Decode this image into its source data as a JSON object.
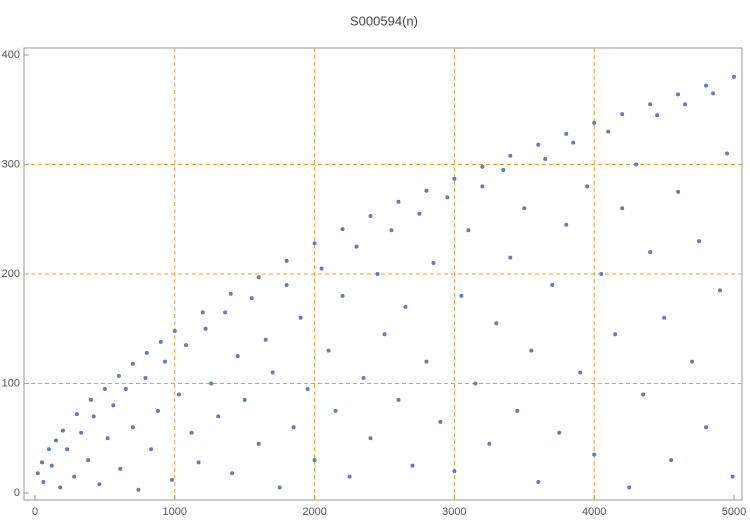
{
  "chart_data": {
    "type": "scatter",
    "title": "S000594(n)",
    "color": "#5b7fbb",
    "grid": true,
    "grid_color": "#f0a030",
    "xlim": [
      0,
      5000
    ],
    "ylim": [
      0,
      400
    ],
    "xticks": [
      0,
      1000,
      2000,
      3000,
      4000,
      5000
    ],
    "yticks": [
      0,
      100,
      200,
      300,
      400
    ],
    "x": [
      20,
      50,
      100,
      150,
      200,
      300,
      400,
      500,
      600,
      700,
      800,
      900,
      1000,
      1200,
      1400,
      1600,
      1800,
      2000,
      2200,
      2400,
      2600,
      2800,
      3000,
      3200,
      3400,
      3600,
      3800,
      4000,
      4200,
      4400,
      4600,
      4800,
      5000,
      60,
      120,
      180,
      230,
      280,
      330,
      380,
      420,
      460,
      520,
      560,
      610,
      650,
      700,
      740,
      790,
      830,
      880,
      930,
      980,
      1030,
      1080,
      1120,
      1170,
      1220,
      1260,
      1310,
      1360,
      1410,
      1450,
      1500,
      1550,
      1600,
      1650,
      1700,
      1750,
      1800,
      1850,
      1900,
      1950,
      2000,
      2050,
      2100,
      2150,
      2200,
      2250,
      2300,
      2350,
      2400,
      2450,
      2500,
      2550,
      2600,
      2650,
      2700,
      2750,
      2800,
      2850,
      2900,
      2950,
      3000,
      3050,
      3100,
      3150,
      3200,
      3250,
      3300,
      3350,
      3400,
      3450,
      3500,
      3550,
      3600,
      3650,
      3700,
      3750,
      3800,
      3850,
      3900,
      3950,
      4000,
      4050,
      4100,
      4150,
      4200,
      4250,
      4300,
      4350,
      4400,
      4450,
      4500,
      4550,
      4600,
      4650,
      4700,
      4750,
      4800,
      4850,
      4900,
      4950,
      4990
    ],
    "values": [
      18,
      28,
      40,
      48,
      57,
      72,
      85,
      95,
      107,
      118,
      128,
      138,
      148,
      165,
      182,
      197,
      212,
      228,
      241,
      253,
      266,
      276,
      287,
      298,
      308,
      318,
      328,
      338,
      346,
      355,
      364,
      372,
      380,
      10,
      25,
      5,
      40,
      15,
      55,
      30,
      70,
      8,
      50,
      80,
      22,
      95,
      60,
      3,
      105,
      40,
      75,
      120,
      12,
      90,
      135,
      55,
      28,
      150,
      100,
      70,
      165,
      18,
      125,
      85,
      178,
      45,
      140,
      110,
      5,
      190,
      60,
      160,
      95,
      30,
      205,
      130,
      75,
      180,
      15,
      225,
      105,
      50,
      200,
      145,
      240,
      85,
      170,
      25,
      255,
      120,
      210,
      65,
      270,
      20,
      180,
      240,
      100,
      280,
      45,
      155,
      295,
      215,
      75,
      260,
      130,
      10,
      305,
      190,
      55,
      245,
      320,
      110,
      280,
      35,
      200,
      330,
      145,
      260,
      5,
      300,
      90,
      220,
      345,
      160,
      30,
      275,
      355,
      120,
      230,
      60,
      365,
      185,
      310,
      15
    ]
  }
}
